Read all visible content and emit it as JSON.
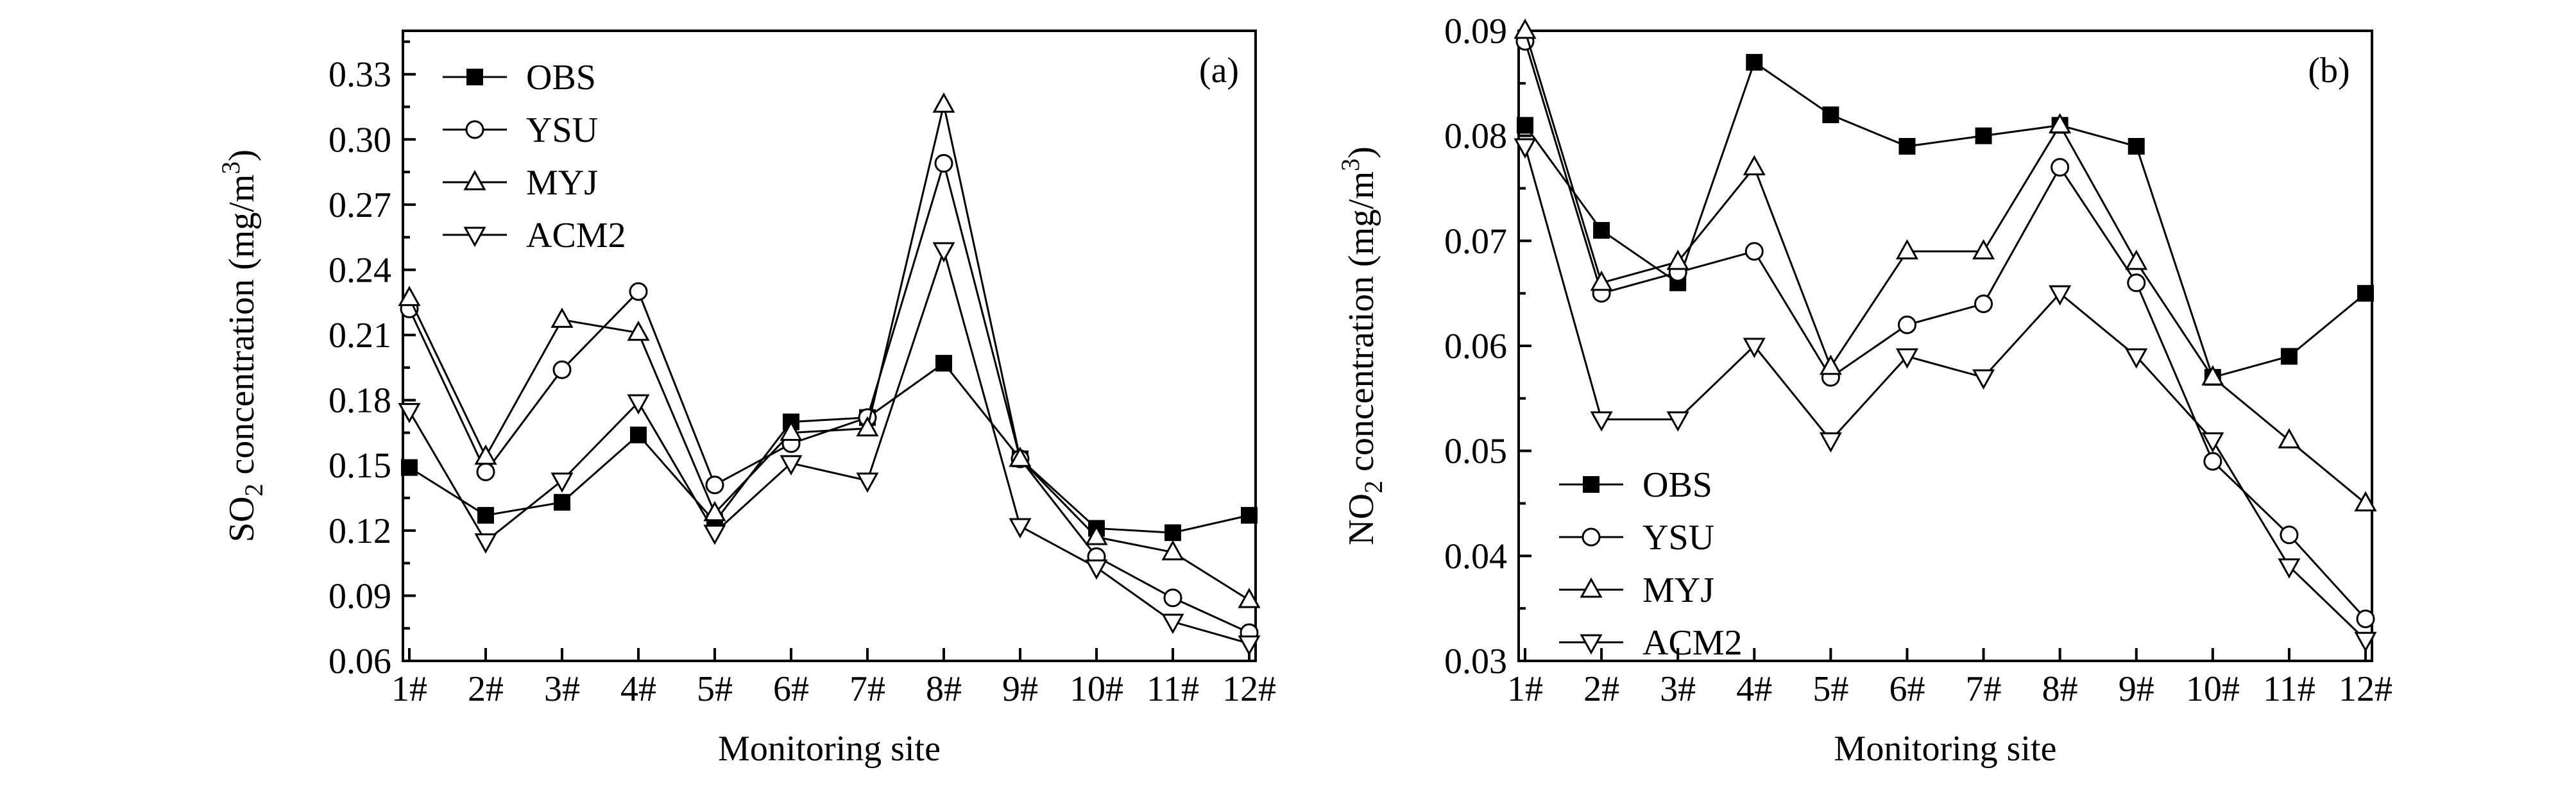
{
  "chart_data": [
    {
      "type": "line",
      "panel_label": "(a)",
      "xlabel": "Monitoring site",
      "ylabel_prefix": "SO",
      "ylabel_sub": "2",
      "ylabel_middle": " concentration (mg/m",
      "ylabel_sup": "3",
      "ylabel_suffix": ")",
      "categories": [
        "1#",
        "2#",
        "3#",
        "4#",
        "5#",
        "6#",
        "7#",
        "8#",
        "9#",
        "10#",
        "11#",
        "12#"
      ],
      "ylim": [
        0.06,
        0.35
      ],
      "yticks": [
        0.06,
        0.09,
        0.12,
        0.15,
        0.18,
        0.21,
        0.24,
        0.27,
        0.3,
        0.33
      ],
      "ytick_labels": [
        "0.06",
        "0.09",
        "0.12",
        "0.15",
        "0.18",
        "0.21",
        "0.24",
        "0.27",
        "0.30",
        "0.33"
      ],
      "legend_position": "top-left",
      "series": [
        {
          "name": "OBS",
          "marker": "square-filled",
          "values": [
            0.149,
            0.127,
            0.133,
            0.164,
            0.124,
            0.17,
            0.172,
            0.197,
            0.153,
            0.121,
            0.119,
            0.127
          ]
        },
        {
          "name": "YSU",
          "marker": "circle-open",
          "values": [
            0.222,
            0.147,
            0.194,
            0.23,
            0.141,
            0.16,
            0.172,
            0.289,
            0.153,
            0.108,
            0.089,
            0.073
          ]
        },
        {
          "name": "MYJ",
          "marker": "triangle-up-open",
          "values": [
            0.227,
            0.154,
            0.217,
            0.211,
            0.128,
            0.165,
            0.167,
            0.316,
            0.153,
            0.117,
            0.11,
            0.088
          ]
        },
        {
          "name": "ACM2",
          "marker": "triangle-down-open",
          "values": [
            0.175,
            0.115,
            0.143,
            0.179,
            0.119,
            0.151,
            0.143,
            0.249,
            0.122,
            0.103,
            0.078,
            0.068
          ]
        }
      ]
    },
    {
      "type": "line",
      "panel_label": "(b)",
      "xlabel": "Monitoring site",
      "ylabel_prefix": "NO",
      "ylabel_sub": "2",
      "ylabel_middle": " concentration (mg/m",
      "ylabel_sup": "3",
      "ylabel_suffix": ")",
      "categories": [
        "1#",
        "2#",
        "3#",
        "4#",
        "5#",
        "6#",
        "7#",
        "8#",
        "9#",
        "10#",
        "11#",
        "12#"
      ],
      "ylim": [
        0.03,
        0.09
      ],
      "yticks": [
        0.03,
        0.04,
        0.05,
        0.06,
        0.07,
        0.08,
        0.09
      ],
      "ytick_labels": [
        "0.03",
        "0.04",
        "0.05",
        "0.06",
        "0.07",
        "0.08",
        "0.09"
      ],
      "legend_position": "bottom-left",
      "series": [
        {
          "name": "OBS",
          "marker": "square-filled",
          "values": [
            0.081,
            0.071,
            0.066,
            0.087,
            0.082,
            0.079,
            0.08,
            0.081,
            0.079,
            0.057,
            0.059,
            0.065
          ]
        },
        {
          "name": "YSU",
          "marker": "circle-open",
          "values": [
            0.089,
            0.065,
            0.067,
            0.069,
            0.057,
            0.062,
            0.064,
            0.077,
            0.066,
            0.049,
            0.042,
            0.034
          ]
        },
        {
          "name": "MYJ",
          "marker": "triangle-up-open",
          "values": [
            0.09,
            0.066,
            0.068,
            0.077,
            0.058,
            0.069,
            0.069,
            0.081,
            0.068,
            0.057,
            0.051,
            0.045
          ]
        },
        {
          "name": "ACM2",
          "marker": "triangle-down-open",
          "values": [
            0.079,
            0.053,
            0.053,
            0.06,
            0.051,
            0.059,
            0.057,
            0.065,
            0.059,
            0.051,
            0.039,
            0.032
          ]
        }
      ]
    }
  ]
}
